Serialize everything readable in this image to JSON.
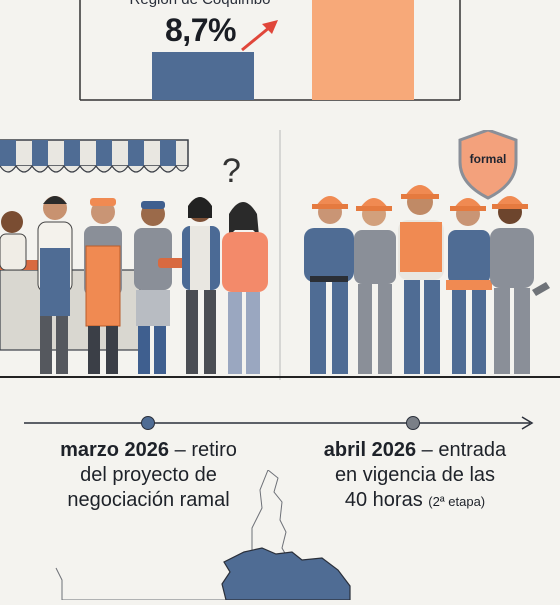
{
  "chart": {
    "region_label": "Región de Coquimbo",
    "value_label": "8,7%",
    "bar_colors": {
      "left": "#4f6c94",
      "right": "#f7a979"
    },
    "arrow_color": "#e0463a"
  },
  "panel": {
    "informal_question": "?",
    "shield_label": "formal",
    "colors": {
      "navy": "#3f5f8f",
      "orange": "#f08a52",
      "gray": "#8a8f98",
      "shield": "#f3a17c"
    }
  },
  "timeline": {
    "left": {
      "date": "marzo 2026",
      "dash": " – ",
      "line1_rest": "retiro",
      "line2": "del proyecto de",
      "line3": "negociación ramal"
    },
    "right": {
      "date": "abril 2026",
      "dash": " – ",
      "line1_rest": "entrada",
      "line2": "en vigencia de las",
      "line3": "40 horas",
      "note": "(2ª etapa)"
    }
  },
  "map": {
    "fill": "#4f6c94"
  }
}
